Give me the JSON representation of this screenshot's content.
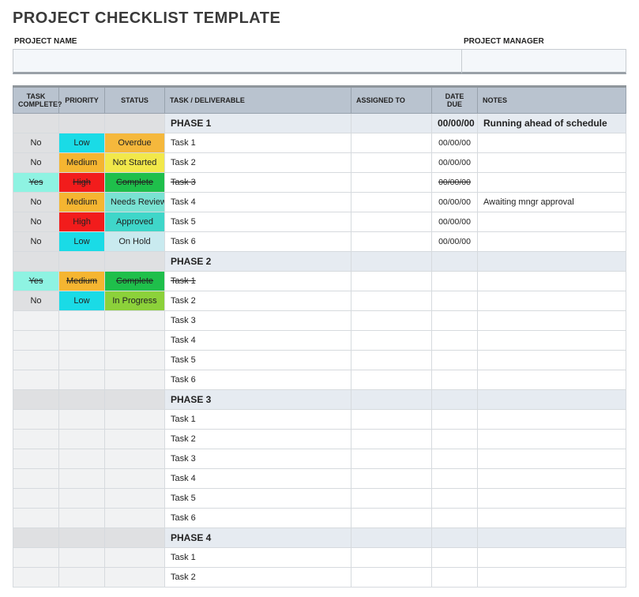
{
  "title": "PROJECT CHECKLIST TEMPLATE",
  "header": {
    "name_label": "PROJECT NAME",
    "mgr_label": "PROJECT MANAGER"
  },
  "columns": {
    "tc": "TASK COMPLETE?",
    "pr": "PRIORITY",
    "st": "STATUS",
    "task": "TASK  / DELIVERABLE",
    "asg": "ASSIGNED TO",
    "due": "DATE DUE",
    "notes": "NOTES"
  },
  "colors": {
    "tc_no": "#dfe0e2",
    "tc_yes": "#8ef3e2",
    "pr_low": "#1adbe6",
    "pr_med": "#f5b531",
    "pr_high": "#f21c1c",
    "st_overdue": "#f5b83c",
    "st_notstarted": "#f2e84a",
    "st_complete": "#1fbf4b",
    "st_needsreview": "#79e2d2",
    "st_approved": "#3fd6c9",
    "st_onhold": "#c9eaef",
    "st_inprogress": "#8cd13a"
  },
  "rows": [
    {
      "type": "phase",
      "task": "PHASE 1",
      "due": "00/00/00",
      "notes": "Running ahead of schedule"
    },
    {
      "type": "task",
      "tc": "No",
      "pr": "Low",
      "pr_key": "pr_low",
      "st": "Overdue",
      "st_key": "st_overdue",
      "task": "Task 1",
      "due": "00/00/00",
      "strike": false
    },
    {
      "type": "task",
      "tc": "No",
      "pr": "Medium",
      "pr_key": "pr_med",
      "st": "Not Started",
      "st_key": "st_notstarted",
      "task": "Task 2",
      "due": "00/00/00",
      "strike": false
    },
    {
      "type": "task",
      "tc": "Yes",
      "pr": "High",
      "pr_key": "pr_high",
      "st": "Complete",
      "st_key": "st_complete",
      "task": "Task 3",
      "due": "00/00/00",
      "strike": true
    },
    {
      "type": "task",
      "tc": "No",
      "pr": "Medium",
      "pr_key": "pr_med",
      "st": "Needs Review",
      "st_key": "st_needsreview",
      "task": "Task 4",
      "due": "00/00/00",
      "notes": "Awaiting mngr approval",
      "strike": false
    },
    {
      "type": "task",
      "tc": "No",
      "pr": "High",
      "pr_key": "pr_high",
      "st": "Approved",
      "st_key": "st_approved",
      "task": "Task 5",
      "due": "00/00/00",
      "strike": false
    },
    {
      "type": "task",
      "tc": "No",
      "pr": "Low",
      "pr_key": "pr_low",
      "st": "On Hold",
      "st_key": "st_onhold",
      "task": "Task 6",
      "due": "00/00/00",
      "strike": false
    },
    {
      "type": "phase",
      "task": "PHASE 2"
    },
    {
      "type": "task",
      "tc": "Yes",
      "pr": "Medium",
      "pr_key": "pr_med",
      "st": "Complete",
      "st_key": "st_complete",
      "task": "Task 1",
      "strike": true
    },
    {
      "type": "task",
      "tc": "No",
      "pr": "Low",
      "pr_key": "pr_low",
      "st": "In Progress",
      "st_key": "st_inprogress",
      "task": "Task 2",
      "strike": false
    },
    {
      "type": "task",
      "task": "Task 3"
    },
    {
      "type": "task",
      "task": "Task 4"
    },
    {
      "type": "task",
      "task": "Task 5"
    },
    {
      "type": "task",
      "task": "Task 6"
    },
    {
      "type": "phase",
      "task": "PHASE 3"
    },
    {
      "type": "task",
      "task": "Task 1"
    },
    {
      "type": "task",
      "task": "Task 2"
    },
    {
      "type": "task",
      "task": "Task 3"
    },
    {
      "type": "task",
      "task": "Task 4"
    },
    {
      "type": "task",
      "task": "Task 5"
    },
    {
      "type": "task",
      "task": "Task 6"
    },
    {
      "type": "phase",
      "task": "PHASE 4"
    },
    {
      "type": "task",
      "task": "Task 1"
    },
    {
      "type": "task",
      "task": "Task 2"
    }
  ]
}
